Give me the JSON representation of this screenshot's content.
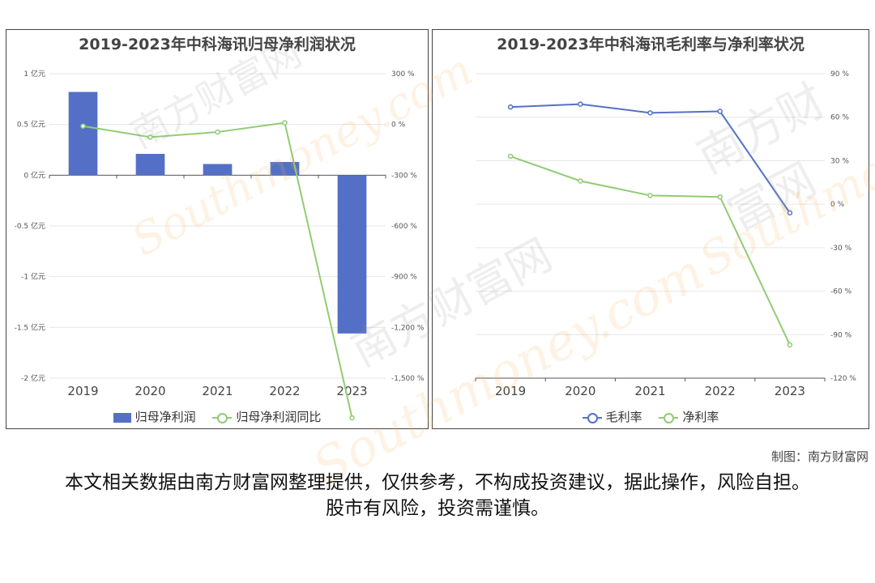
{
  "chart_data": [
    {
      "type": "bar",
      "title": "2019-2023年中科海讯归母净利润状况",
      "categories": [
        "2019",
        "2020",
        "2021",
        "2022",
        "2023"
      ],
      "series": [
        {
          "name": "归母净利润",
          "axis": "left",
          "type": "bar",
          "color": "#5470c6",
          "values": [
            0.82,
            0.21,
            0.11,
            0.13,
            -1.56
          ]
        },
        {
          "name": "归母净利润同比",
          "axis": "right",
          "type": "line",
          "color": "#91cc75",
          "values": [
            -10,
            -75,
            -45,
            10,
            -1735
          ]
        }
      ],
      "y_left": {
        "min": -2,
        "max": 1,
        "ticks": [
          1,
          0.5,
          0,
          -0.5,
          -1,
          -1.5,
          -2
        ],
        "tick_labels": [
          "1 亿元",
          "0.5 亿元",
          "0 亿元",
          "-0.5 亿元",
          "-1 亿元",
          "-1.5 亿元",
          "-2 亿元"
        ]
      },
      "y_right": {
        "min": -1500,
        "max": 300,
        "ticks": [
          300,
          0,
          -300,
          -600,
          -900,
          -1200,
          -1500
        ],
        "tick_labels": [
          "300 %",
          "0 %",
          "-300 %",
          "-600 %",
          "-900 %",
          "-1,200 %",
          "-1,500 %"
        ]
      },
      "grid": true,
      "legend": "bottom"
    },
    {
      "type": "line",
      "title": "2019-2023年中科海讯毛利率与净利率状况",
      "categories": [
        "2019",
        "2020",
        "2021",
        "2022",
        "2023"
      ],
      "series": [
        {
          "name": "毛利率",
          "axis": "right",
          "color": "#5470c6",
          "values": [
            67,
            69,
            63,
            64,
            -6
          ]
        },
        {
          "name": "净利率",
          "axis": "right",
          "color": "#91cc75",
          "values": [
            33,
            16,
            6,
            5,
            -97
          ]
        }
      ],
      "y_right": {
        "min": -120,
        "max": 90,
        "ticks": [
          90,
          60,
          30,
          0,
          -30,
          -60,
          -90,
          -120
        ],
        "tick_labels": [
          "90 %",
          "60 %",
          "30 %",
          "0 %",
          "-30 %",
          "-60 %",
          "-90 %",
          "-120 %"
        ]
      },
      "grid": true,
      "legend": "bottom"
    }
  ],
  "credit": "制图：南方财富网",
  "disclaimer": "本文相关数据由南方财富网整理提供，仅供参考，不构成投资建议，据此操作，风险自担。股市有风险，投资需谨慎。",
  "watermark": {
    "cn": "南方财富网",
    "en": "Southmoney.com"
  }
}
